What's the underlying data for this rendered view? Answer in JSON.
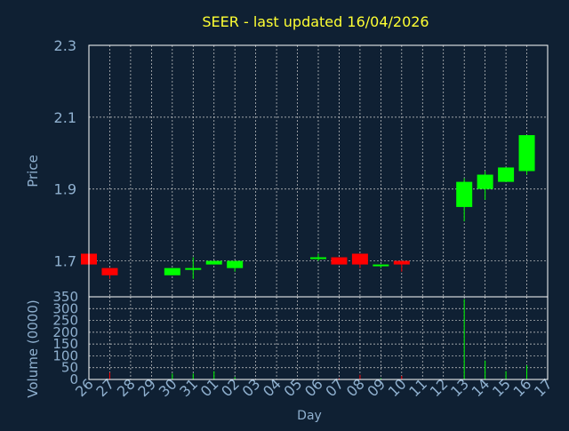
{
  "colors": {
    "background": "#0f2033",
    "title": "#ffff33",
    "axis_text": "#8fb0cf",
    "grid": "#d0d0d0",
    "up": "#00ff00",
    "down": "#ff0000",
    "frame": "#ffffff"
  },
  "chart_data": [
    {
      "type": "candlestick",
      "title": "SEER - last updated 16/04/2026",
      "ylabel": "Price",
      "ylim": [
        1.6,
        2.3
      ],
      "yticks": [
        "1.7",
        "1.9",
        "2.1",
        "2.3"
      ],
      "grid": true,
      "categories": [
        "26",
        "27",
        "28",
        "29",
        "30",
        "31",
        "01",
        "02",
        "03",
        "04",
        "05",
        "06",
        "07",
        "08",
        "09",
        "10",
        "11",
        "12",
        "13",
        "14",
        "15",
        "16",
        "17"
      ],
      "candles": [
        {
          "day": "26",
          "open": 1.72,
          "close": 1.69,
          "high": 1.72,
          "low": 1.69
        },
        {
          "day": "27",
          "open": 1.68,
          "close": 1.66,
          "high": 1.68,
          "low": 1.65
        },
        {
          "day": "30",
          "open": 1.66,
          "close": 1.68,
          "high": 1.68,
          "low": 1.66
        },
        {
          "day": "31",
          "open": 1.68,
          "close": 1.68,
          "high": 1.71,
          "low": 1.65
        },
        {
          "day": "01",
          "open": 1.69,
          "close": 1.7,
          "high": 1.7,
          "low": 1.69
        },
        {
          "day": "02",
          "open": 1.68,
          "close": 1.7,
          "high": 1.7,
          "low": 1.67
        },
        {
          "day": "06",
          "open": 1.71,
          "close": 1.71,
          "high": 1.72,
          "low": 1.7
        },
        {
          "day": "07",
          "open": 1.71,
          "close": 1.69,
          "high": 1.71,
          "low": 1.69
        },
        {
          "day": "08",
          "open": 1.72,
          "close": 1.69,
          "high": 1.72,
          "low": 1.68
        },
        {
          "day": "09",
          "open": 1.69,
          "close": 1.69,
          "high": 1.69,
          "low": 1.68
        },
        {
          "day": "10",
          "open": 1.7,
          "close": 1.69,
          "high": 1.7,
          "low": 1.67
        },
        {
          "day": "13",
          "open": 1.85,
          "close": 1.92,
          "high": 1.93,
          "low": 1.81
        },
        {
          "day": "14",
          "open": 1.9,
          "close": 1.94,
          "high": 1.95,
          "low": 1.87
        },
        {
          "day": "15",
          "open": 1.92,
          "close": 1.96,
          "high": 1.96,
          "low": 1.92
        },
        {
          "day": "16",
          "open": 1.95,
          "close": 2.05,
          "high": 2.05,
          "low": 1.94
        }
      ]
    },
    {
      "type": "bar",
      "ylabel": "Volume (0000)",
      "xlabel": "Day",
      "ylim": [
        0,
        350
      ],
      "yticks": [
        "0",
        "50",
        "100",
        "150",
        "200",
        "250",
        "300",
        "350"
      ],
      "grid": true,
      "categories": [
        "26",
        "27",
        "28",
        "29",
        "30",
        "31",
        "01",
        "02",
        "03",
        "04",
        "05",
        "06",
        "07",
        "08",
        "09",
        "10",
        "11",
        "12",
        "13",
        "14",
        "15",
        "16",
        "17"
      ],
      "bars": [
        {
          "day": "27",
          "value": 30,
          "dir": "down"
        },
        {
          "day": "30",
          "value": 25,
          "dir": "up"
        },
        {
          "day": "31",
          "value": 25,
          "dir": "up"
        },
        {
          "day": "01",
          "value": 35,
          "dir": "up"
        },
        {
          "day": "02",
          "value": 10,
          "dir": "up"
        },
        {
          "day": "07",
          "value": 5,
          "dir": "down"
        },
        {
          "day": "08",
          "value": 20,
          "dir": "down"
        },
        {
          "day": "09",
          "value": 5,
          "dir": "up"
        },
        {
          "day": "10",
          "value": 15,
          "dir": "down"
        },
        {
          "day": "13",
          "value": 340,
          "dir": "up"
        },
        {
          "day": "14",
          "value": 80,
          "dir": "up"
        },
        {
          "day": "15",
          "value": 35,
          "dir": "up"
        },
        {
          "day": "16",
          "value": 60,
          "dir": "up"
        }
      ]
    }
  ]
}
